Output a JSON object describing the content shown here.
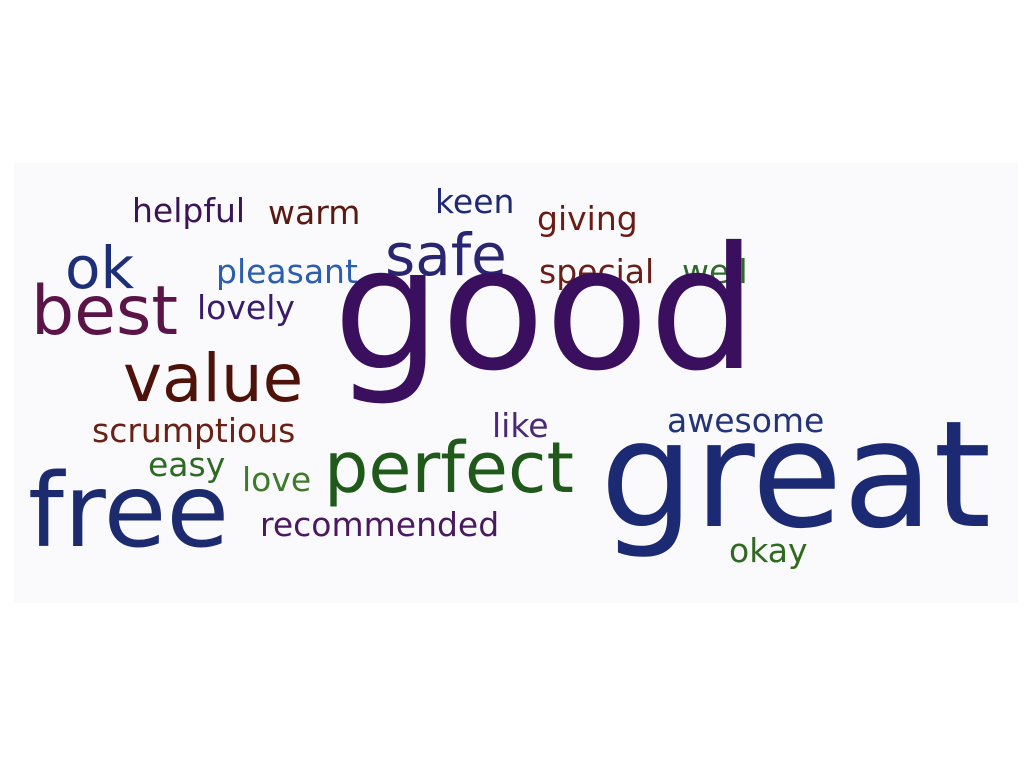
{
  "words": [
    {
      "text": "helpful",
      "color": "#3b1357"
    },
    {
      "text": "warm",
      "color": "#5a1a12"
    },
    {
      "text": "keen",
      "color": "#1e2a72"
    },
    {
      "text": "giving",
      "color": "#6b1a14"
    },
    {
      "text": "ok",
      "color": "#1e2f7a"
    },
    {
      "text": "safe",
      "color": "#2a2570"
    },
    {
      "text": "pleasant",
      "color": "#2b5eae"
    },
    {
      "text": "special",
      "color": "#6a1e18"
    },
    {
      "text": "well",
      "color": "#2f6a2a"
    },
    {
      "text": "best",
      "color": "#5a1448"
    },
    {
      "text": "lovely",
      "color": "#3a1a6a"
    },
    {
      "text": "good",
      "color": "#3a0f5e"
    },
    {
      "text": "value",
      "color": "#4e1208"
    },
    {
      "text": "scrumptious",
      "color": "#6a2014"
    },
    {
      "text": "like",
      "color": "#4a2a78"
    },
    {
      "text": "awesome",
      "color": "#233577"
    },
    {
      "text": "easy",
      "color": "#2f6a24"
    },
    {
      "text": "love",
      "color": "#3f7a2a"
    },
    {
      "text": "perfect",
      "color": "#1f5a1a"
    },
    {
      "text": "great",
      "color": "#1b2a72"
    },
    {
      "text": "free",
      "color": "#1c2a6e"
    },
    {
      "text": "recommended",
      "color": "#4a1a5e"
    },
    {
      "text": "okay",
      "color": "#2f6a1e"
    }
  ]
}
